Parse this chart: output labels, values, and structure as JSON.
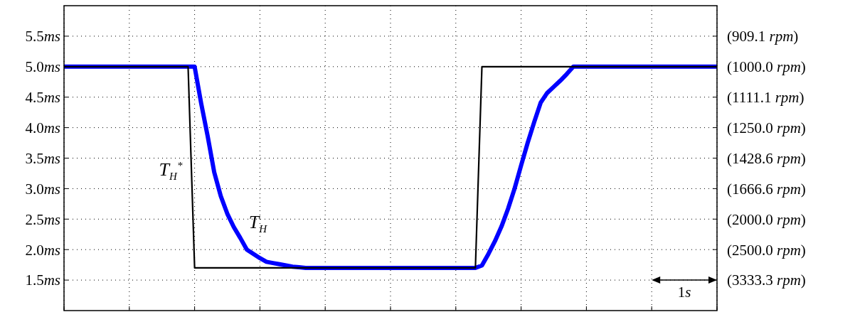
{
  "chart_data": {
    "type": "line",
    "categories": [
      null,
      null,
      null,
      null,
      null,
      null,
      null,
      null,
      null,
      null,
      null,
      null,
      null,
      null,
      null,
      null,
      null,
      null,
      null,
      null,
      null,
      null,
      null,
      null,
      null,
      null,
      null,
      null,
      null,
      null,
      null,
      null,
      null,
      null,
      null,
      null,
      null,
      null,
      null,
      null,
      null,
      null,
      null,
      null,
      null,
      null,
      null,
      null,
      null,
      null,
      null,
      null,
      null,
      null,
      null,
      null,
      null,
      null,
      null,
      null,
      null,
      null,
      null,
      null,
      null,
      null,
      null,
      null,
      null,
      null,
      null,
      null,
      null,
      null,
      null,
      null,
      null,
      null,
      null,
      null,
      null,
      null,
      null,
      null,
      null,
      null,
      null,
      null,
      null,
      null,
      null,
      null,
      null,
      null,
      null,
      null,
      null,
      null,
      null,
      null,
      null
    ],
    "ylim": [
      1,
      6
    ],
    "yticks": [
      {
        "value": 1.5,
        "label": "1.5ms"
      },
      {
        "value": 2,
        "label": "2.0ms"
      },
      {
        "value": 2.5,
        "label": "2.5ms"
      },
      {
        "value": 3,
        "label": "3.0ms"
      },
      {
        "value": 3.5,
        "label": "3.5ms"
      },
      {
        "value": 4,
        "label": "4.0ms"
      },
      {
        "value": 4.5,
        "label": "4.5ms"
      },
      {
        "value": 5,
        "label": "5.0ms"
      },
      {
        "value": 5.5,
        "label": "5.5ms"
      }
    ],
    "grid": true,
    "line_style": "solid",
    "annotations": [
      "(3333.3 rpm)",
      "(2500.0 rpm)",
      "(2000.0 rpm)",
      "(1666.6 rpm)",
      "(1428.6 rpm)",
      "(1250.0 rpm)",
      "(1111.1 rpm)",
      "(1000.0 rpm)",
      "(909.1 rpm)",
      "1s"
    ],
    "series": [
      {
        "name": "T$_{H}$",
        "color": "#0000ff",
        "values": [
          5,
          5,
          5,
          5,
          5,
          5,
          5,
          5,
          5,
          5,
          5,
          5,
          5,
          5,
          5,
          5,
          5,
          5,
          5,
          5,
          5,
          4.4,
          3.86,
          3.27,
          2.88,
          2.59,
          2.37,
          2.19,
          2.0,
          1.93,
          1.86,
          1.8,
          1.78,
          1.76,
          1.74,
          1.72,
          1.71,
          1.7,
          1.7,
          1.7,
          1.7,
          1.7,
          1.7,
          1.7,
          1.7,
          1.7,
          1.7,
          1.7,
          1.7,
          1.7,
          1.7,
          1.7,
          1.7,
          1.7,
          1.7,
          1.7,
          1.7,
          1.7,
          1.7,
          1.7,
          1.7,
          1.7,
          1.7,
          1.7,
          1.74,
          1.93,
          2.14,
          2.38,
          2.67,
          3.0,
          3.38,
          3.75,
          4.09,
          4.41,
          4.57,
          4.67,
          4.77,
          4.88,
          5.0,
          5,
          5,
          5,
          5,
          5,
          5,
          5,
          5,
          5,
          5,
          5,
          5,
          5,
          5,
          5,
          5,
          5,
          5,
          5,
          5,
          5,
          5
        ]
      },
      {
        "name": "T$_{H}$$^{*}$",
        "color": "#000000",
        "values": [
          5,
          5,
          5,
          5,
          5,
          5,
          5,
          5,
          5,
          5,
          5,
          5,
          5,
          5,
          5,
          5,
          5,
          5,
          5,
          5,
          1.7,
          1.7,
          1.7,
          1.7,
          1.7,
          1.7,
          1.7,
          1.7,
          1.7,
          1.7,
          1.7,
          1.7,
          1.7,
          1.7,
          1.7,
          1.7,
          1.7,
          1.7,
          1.7,
          1.7,
          1.7,
          1.7,
          1.7,
          1.7,
          1.7,
          1.7,
          1.7,
          1.7,
          1.7,
          1.7,
          1.7,
          1.7,
          1.7,
          1.7,
          1.7,
          1.7,
          1.7,
          1.7,
          1.7,
          1.7,
          1.7,
          1.7,
          1.7,
          1.7,
          5,
          5,
          5,
          5,
          5,
          5,
          5,
          5,
          5,
          5,
          5,
          5,
          5,
          5,
          5,
          5,
          5,
          5,
          5,
          5,
          5,
          5,
          5,
          5,
          5,
          5,
          5,
          5,
          5,
          5,
          5,
          5,
          5,
          5,
          5,
          5,
          5
        ]
      }
    ]
  }
}
